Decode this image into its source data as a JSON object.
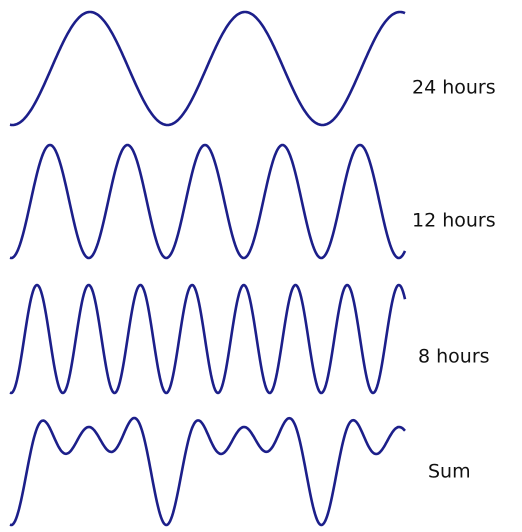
{
  "labels": [
    "24 hours",
    "12 hours",
    "8 hours",
    "Sum"
  ]
}
